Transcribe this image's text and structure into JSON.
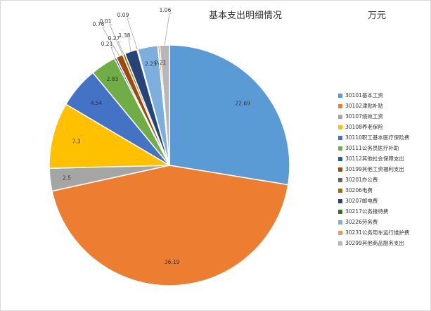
{
  "title": "基本支出明细情况",
  "unit": "万元",
  "chart_data": {
    "type": "pie",
    "title": "基本支出明细情况",
    "unit": "万元",
    "legend_position": "right",
    "start": "12 o'clock",
    "direction": "clockwise",
    "categories": [
      "30101基本工资",
      "30102津贴补贴",
      "30107绩效工资",
      "30108养老保险",
      "30110职工基本医疗保险费",
      "30111公务员医疗补助",
      "30112其他社会保障支出",
      "30199其他工资福利支出",
      "30201办公费",
      "30206电费",
      "30207邮电费",
      "30217公务接待费",
      "30226劳务费",
      "30231公务用车运行维护费",
      "30299其他商品服务支出"
    ],
    "values": [
      22.69,
      36.19,
      2.5,
      7.3,
      4.54,
      2.83,
      0.21,
      0.76,
      0.01,
      0.27,
      1.38,
      0.09,
      2.23,
      0.21,
      1.06
    ],
    "value_labels": [
      "22.69",
      "36.19",
      "2.5",
      "7.3",
      "4.54",
      "2.83",
      "0.21",
      "0.76",
      "0.01",
      "0.27",
      "1.38",
      "0.09",
      "2.23",
      "0.21",
      "1.06"
    ],
    "colors": [
      "#5b9bd5",
      "#ed7d31",
      "#a5a5a5",
      "#ffc000",
      "#4472c4",
      "#70ad47",
      "#255e91",
      "#9e480e",
      "#636363",
      "#997300",
      "#264478",
      "#43682b",
      "#7cafdd",
      "#f1975a",
      "#b7b7b7"
    ]
  }
}
